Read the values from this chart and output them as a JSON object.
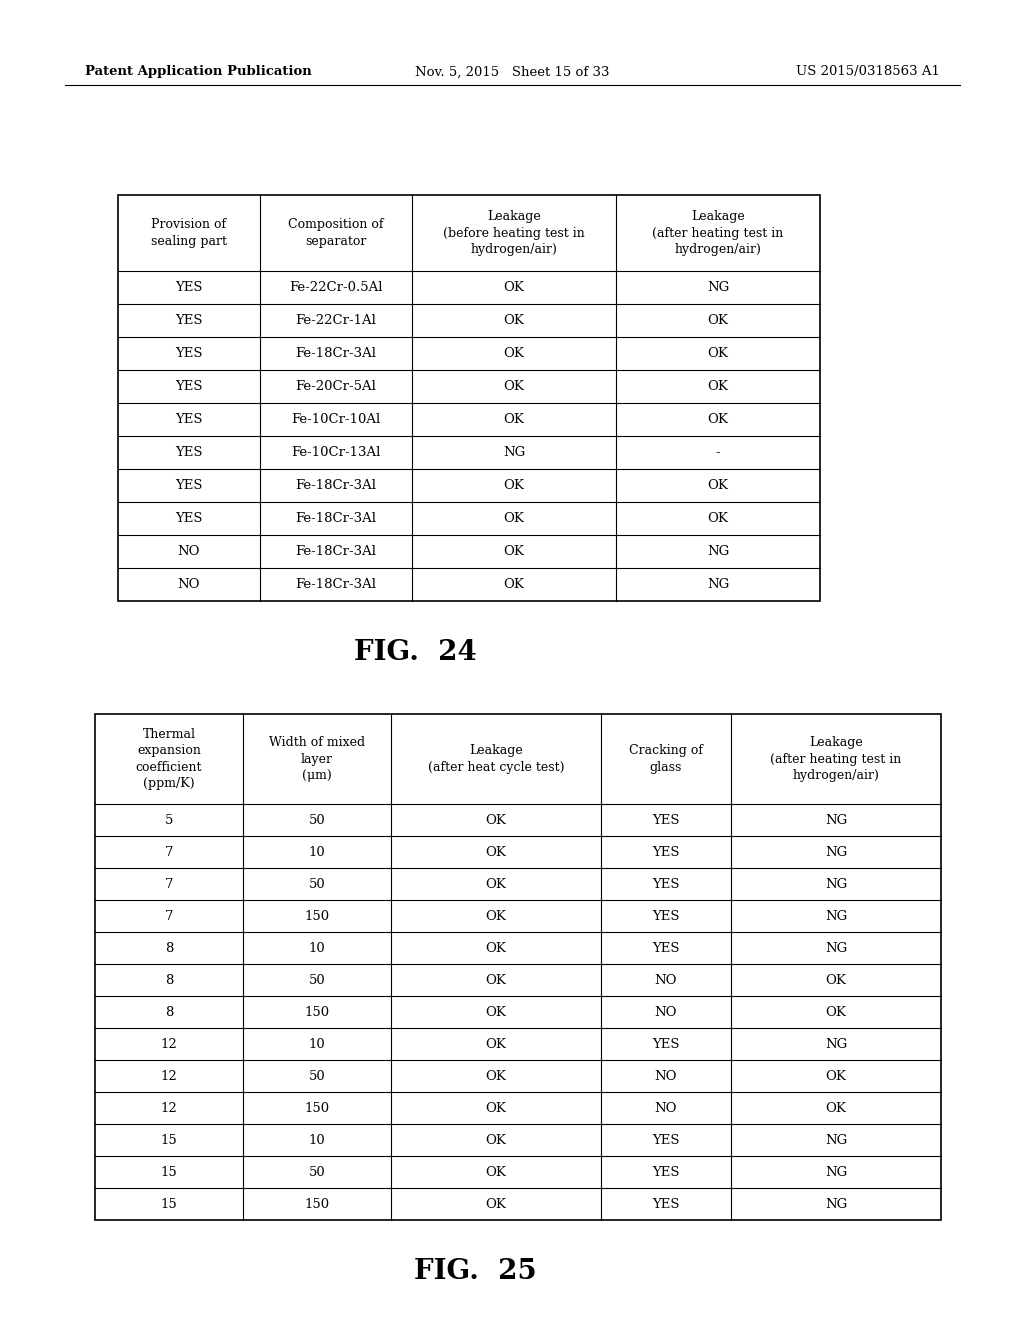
{
  "header_left": "Patent Application Publication",
  "header_mid": "Nov. 5, 2015   Sheet 15 of 33",
  "header_right": "US 2015/0318563 A1",
  "fig24_caption": "FIG.  24",
  "fig25_caption": "FIG.  25",
  "table1_headers": [
    "Provision of\nsealing part",
    "Composition of\nseparator",
    "Leakage\n(before heating test in\nhydrogen/air)",
    "Leakage\n(after heating test in\nhydrogen/air)"
  ],
  "table1_rows": [
    [
      "YES",
      "Fe-22Cr-0.5Al",
      "OK",
      "NG"
    ],
    [
      "YES",
      "Fe-22Cr-1Al",
      "OK",
      "OK"
    ],
    [
      "YES",
      "Fe-18Cr-3Al",
      "OK",
      "OK"
    ],
    [
      "YES",
      "Fe-20Cr-5Al",
      "OK",
      "OK"
    ],
    [
      "YES",
      "Fe-10Cr-10Al",
      "OK",
      "OK"
    ],
    [
      "YES",
      "Fe-10Cr-13Al",
      "NG",
      "-"
    ],
    [
      "YES",
      "Fe-18Cr-3Al",
      "OK",
      "OK"
    ],
    [
      "YES",
      "Fe-18Cr-3Al",
      "OK",
      "OK"
    ],
    [
      "NO",
      "Fe-18Cr-3Al",
      "OK",
      "NG"
    ],
    [
      "NO",
      "Fe-18Cr-3Al",
      "OK",
      "NG"
    ]
  ],
  "table2_headers": [
    "Thermal\nexpansion\ncoefficient\n(ppm/K)",
    "Width of mixed\nlayer\n(μm)",
    "Leakage\n(after heat cycle test)",
    "Cracking of\nglass",
    "Leakage\n(after heating test in\nhydrogen/air)"
  ],
  "table2_rows": [
    [
      "5",
      "50",
      "OK",
      "YES",
      "NG"
    ],
    [
      "7",
      "10",
      "OK",
      "YES",
      "NG"
    ],
    [
      "7",
      "50",
      "OK",
      "YES",
      "NG"
    ],
    [
      "7",
      "150",
      "OK",
      "YES",
      "NG"
    ],
    [
      "8",
      "10",
      "OK",
      "YES",
      "NG"
    ],
    [
      "8",
      "50",
      "OK",
      "NO",
      "OK"
    ],
    [
      "8",
      "150",
      "OK",
      "NO",
      "OK"
    ],
    [
      "12",
      "10",
      "OK",
      "YES",
      "NG"
    ],
    [
      "12",
      "50",
      "OK",
      "NO",
      "OK"
    ],
    [
      "12",
      "150",
      "OK",
      "NO",
      "OK"
    ],
    [
      "15",
      "10",
      "OK",
      "YES",
      "NG"
    ],
    [
      "15",
      "50",
      "OK",
      "YES",
      "NG"
    ],
    [
      "15",
      "150",
      "OK",
      "YES",
      "NG"
    ]
  ],
  "bg_color": "#ffffff",
  "text_color": "#000000",
  "header_fontsize": 9.5,
  "cell_fontsize": 9.5,
  "caption_fontsize": 20
}
